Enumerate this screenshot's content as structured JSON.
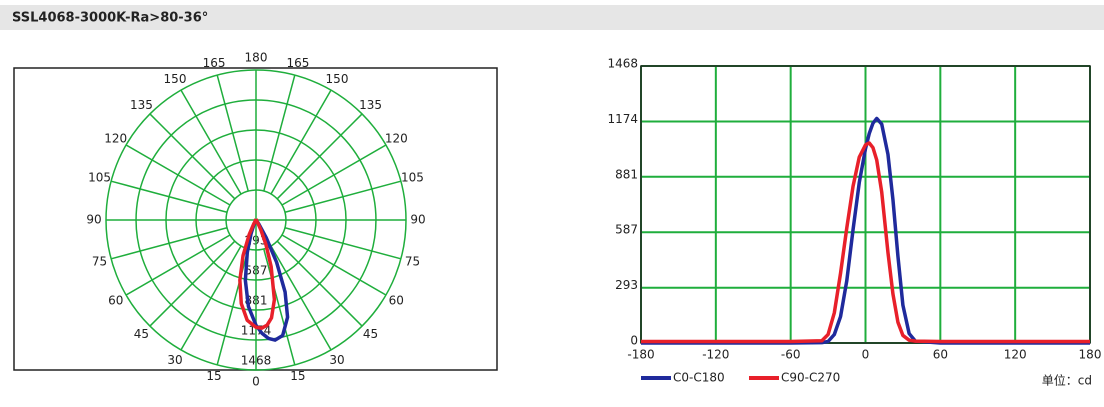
{
  "title": "SSL4068-3000K-Ra>80-36°",
  "chart_data": [
    {
      "type": "polar",
      "theta": [
        -180,
        -60,
        -35,
        -30,
        -25,
        -20,
        -15,
        -10,
        -5,
        0,
        3,
        6,
        9,
        13,
        18,
        22,
        26,
        30,
        35,
        40,
        60,
        180
      ],
      "angle_ticks": [
        0,
        15,
        30,
        45,
        60,
        75,
        90,
        105,
        120,
        135,
        150,
        165,
        180
      ],
      "rlim": [
        0,
        1468
      ],
      "rticks": [
        293,
        587,
        881,
        1174,
        1468
      ],
      "grid_color": "#1fae3c",
      "series": [
        {
          "name": "C0-C180",
          "color": "#1f2a9c",
          "values": [
            0,
            0,
            2,
            8,
            45,
            140,
            330,
            600,
            850,
            1030,
            1110,
            1165,
            1190,
            1160,
            1000,
            760,
            460,
            200,
            50,
            10,
            0,
            0
          ]
        },
        {
          "name": "C90-C270",
          "color": "#e8202a",
          "values": [
            8,
            8,
            12,
            45,
            160,
            370,
            610,
            830,
            985,
            1050,
            1060,
            1035,
            970,
            800,
            480,
            260,
            110,
            40,
            15,
            10,
            8,
            8
          ]
        }
      ]
    },
    {
      "type": "line",
      "x": [
        -180,
        -60,
        -35,
        -30,
        -25,
        -20,
        -15,
        -10,
        -5,
        0,
        3,
        6,
        9,
        13,
        18,
        22,
        26,
        30,
        35,
        40,
        60,
        180
      ],
      "xlim": [
        -180,
        180
      ],
      "xticks": [
        -180,
        -120,
        -60,
        0,
        60,
        120,
        180
      ],
      "ylim": [
        0,
        1468
      ],
      "yticks": [
        0,
        293,
        587,
        881,
        1174,
        1468
      ],
      "grid": true,
      "grid_color": "#1fae3c",
      "unit_label": "单位：cd",
      "series": [
        {
          "name": "C0-C180",
          "color": "#1f2a9c",
          "values": [
            0,
            0,
            2,
            8,
            45,
            140,
            330,
            600,
            850,
            1030,
            1110,
            1165,
            1190,
            1160,
            1000,
            760,
            460,
            200,
            50,
            10,
            0,
            0
          ]
        },
        {
          "name": "C90-C270",
          "color": "#e8202a",
          "values": [
            8,
            8,
            12,
            45,
            160,
            370,
            610,
            830,
            985,
            1050,
            1060,
            1035,
            970,
            800,
            480,
            260,
            110,
            40,
            15,
            10,
            8,
            8
          ]
        }
      ]
    }
  ]
}
